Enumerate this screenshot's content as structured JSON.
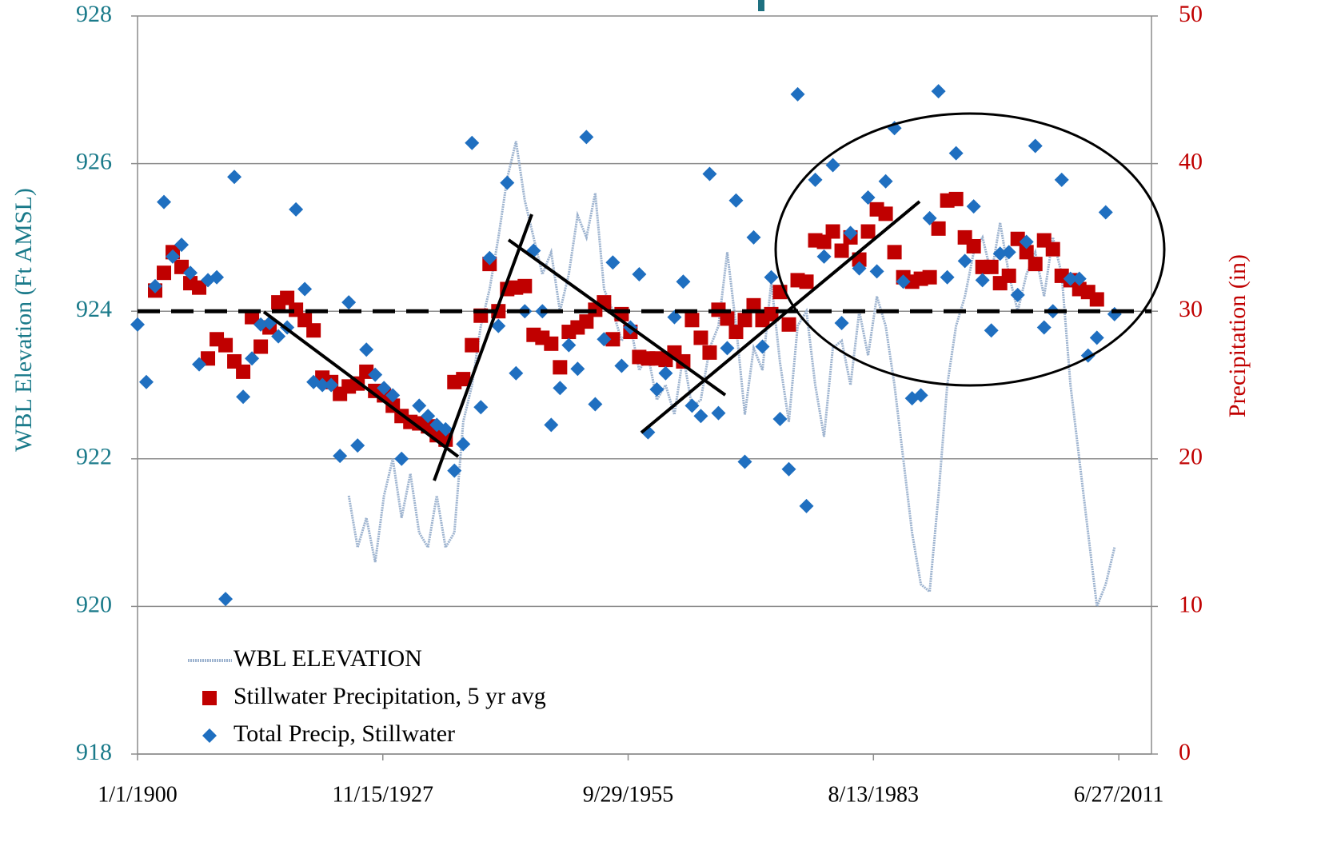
{
  "chart_data": {
    "type": "scatter",
    "ylabel": "WBL Elevation (Ft AMSL)",
    "y2label": "Precipitation (in)",
    "xlim": [
      1900,
      2015.2
    ],
    "xticks": [
      {
        "value": 1900,
        "label": "1/1/1900"
      },
      {
        "value": 1927.87,
        "label": "11/15/1927"
      },
      {
        "value": 1955.74,
        "label": "9/29/1955"
      },
      {
        "value": 1983.61,
        "label": "8/13/1983"
      },
      {
        "value": 2011.49,
        "label": "6/27/2011"
      }
    ],
    "ylim": [
      918,
      928
    ],
    "yticks": [
      918,
      920,
      922,
      924,
      926,
      928
    ],
    "y2lim": [
      0,
      50
    ],
    "y2ticks": [
      {
        "value": 0,
        "label": "0"
      },
      10,
      20,
      30,
      40,
      50
    ],
    "grid": true,
    "legend": "lower left",
    "reference_y": 924,
    "series": [
      {
        "name": "WBL ELEVATION",
        "type": "line",
        "color": "#9db3cf",
        "x": [
          1924,
          1925,
          1926,
          1927,
          1928,
          1929,
          1930,
          1931,
          1932,
          1933,
          1934,
          1935,
          1936,
          1937,
          1938,
          1939,
          1940,
          1941,
          1942,
          1943,
          1944,
          1945,
          1946,
          1947,
          1948,
          1949,
          1950,
          1951,
          1952,
          1953,
          1954,
          1955,
          1956,
          1957,
          1958,
          1959,
          1960,
          1961,
          1962,
          1963,
          1964,
          1965,
          1966,
          1967,
          1968,
          1969,
          1970,
          1971,
          1972,
          1973,
          1974,
          1975,
          1976,
          1977,
          1978,
          1979,
          1980,
          1981,
          1982,
          1983,
          1984,
          1985,
          1986,
          1987,
          1988,
          1989,
          1990,
          1991,
          1992,
          1993,
          1994,
          1995,
          1996,
          1997,
          1998,
          1999,
          2000,
          2001,
          2002,
          2003,
          2004,
          2005,
          2006,
          2007,
          2008,
          2009,
          2010,
          2011
        ],
        "values": [
          921.5,
          920.8,
          921.2,
          920.6,
          921.5,
          922.0,
          921.2,
          921.8,
          921.0,
          920.8,
          921.5,
          920.8,
          921.0,
          922.5,
          923.0,
          923.8,
          924.3,
          925.0,
          925.8,
          926.3,
          925.5,
          925.0,
          924.5,
          924.8,
          924.0,
          924.5,
          925.3,
          925.0,
          925.6,
          924.3,
          924.0,
          923.6,
          923.8,
          923.2,
          923.4,
          922.8,
          923.0,
          922.6,
          923.4,
          922.7,
          922.8,
          923.5,
          923.8,
          924.8,
          923.8,
          922.6,
          923.5,
          923.2,
          924.4,
          923.3,
          922.5,
          923.8,
          924.0,
          923.0,
          922.3,
          923.5,
          923.6,
          923.0,
          924.0,
          923.4,
          924.2,
          923.8,
          923.0,
          922.0,
          921.0,
          920.3,
          920.2,
          921.5,
          923.0,
          923.8,
          924.2,
          924.8,
          925.0,
          924.5,
          925.2,
          924.5,
          924.0,
          924.5,
          924.8,
          924.2,
          925.0,
          924.5,
          923.0,
          922.0,
          921.0,
          920.0,
          920.3,
          920.8
        ]
      },
      {
        "name": "Stillwater Precipitation, 5 yr avg",
        "type": "scatter",
        "marker": "square",
        "color": "#c00000",
        "axis": "y2",
        "x": [
          1902,
          1903,
          1904,
          1905,
          1906,
          1907,
          1908,
          1909,
          1910,
          1911,
          1912,
          1913,
          1914,
          1915,
          1916,
          1917,
          1918,
          1919,
          1920,
          1921,
          1922,
          1923,
          1924,
          1925,
          1926,
          1927,
          1928,
          1929,
          1930,
          1931,
          1932,
          1933,
          1934,
          1935,
          1936,
          1937,
          1938,
          1939,
          1940,
          1941,
          1942,
          1943,
          1944,
          1945,
          1946,
          1947,
          1948,
          1949,
          1950,
          1951,
          1952,
          1953,
          1954,
          1955,
          1956,
          1957,
          1958,
          1959,
          1960,
          1961,
          1962,
          1963,
          1964,
          1965,
          1966,
          1967,
          1968,
          1969,
          1970,
          1971,
          1972,
          1973,
          1974,
          1975,
          1976,
          1977,
          1978,
          1979,
          1980,
          1981,
          1982,
          1983,
          1984,
          1985,
          1986,
          1987,
          1988,
          1989,
          1990,
          1991,
          1992,
          1993,
          1994,
          1995,
          1996,
          1997,
          1998,
          1999,
          2000,
          2001,
          2002,
          2003,
          2004,
          2005,
          2006,
          2007,
          2008,
          2009
        ],
        "values": [
          31.4,
          32.6,
          34.0,
          33.0,
          31.9,
          31.6,
          26.8,
          28.1,
          27.7,
          26.6,
          25.9,
          29.6,
          27.6,
          28.9,
          30.6,
          30.9,
          30.1,
          29.4,
          28.7,
          25.5,
          25.2,
          24.4,
          24.9,
          25.1,
          25.9,
          24.6,
          24.3,
          23.6,
          22.9,
          22.5,
          22.4,
          22.2,
          21.6,
          21.3,
          25.2,
          25.4,
          27.7,
          29.7,
          33.2,
          30.0,
          31.5,
          31.6,
          31.7,
          28.4,
          28.2,
          27.8,
          26.2,
          28.6,
          28.9,
          29.3,
          30.1,
          30.6,
          28.1,
          29.8,
          28.6,
          26.9,
          26.8,
          26.8,
          26.7,
          27.2,
          26.6,
          29.4,
          28.2,
          27.2,
          30.1,
          29.5,
          28.6,
          29.4,
          30.4,
          29.4,
          29.8,
          31.3,
          29.1,
          32.1,
          32.0,
          34.8,
          34.7,
          35.4,
          34.1,
          35.0,
          33.5,
          35.4,
          36.9,
          36.6,
          34.0,
          32.3,
          32.0,
          32.2,
          32.3,
          35.6,
          37.5,
          37.6,
          35.0,
          34.4,
          33.0,
          33.0,
          31.9,
          32.4,
          34.9,
          34.0,
          33.2,
          34.8,
          34.2,
          32.4,
          32.1,
          31.5,
          31.3,
          30.8
        ]
      },
      {
        "name": "Total Precip, Stillwater",
        "type": "scatter",
        "marker": "diamond",
        "color": "#1f6fc0",
        "axis": "y2",
        "x": [
          1900,
          1901,
          1902,
          1903,
          1904,
          1905,
          1906,
          1907,
          1908,
          1909,
          1910,
          1911,
          1912,
          1913,
          1914,
          1915,
          1916,
          1917,
          1918,
          1919,
          1920,
          1921,
          1922,
          1923,
          1924,
          1925,
          1926,
          1927,
          1928,
          1929,
          1930,
          1932,
          1933,
          1934,
          1935,
          1936,
          1937,
          1938,
          1939,
          1940,
          1941,
          1942,
          1943,
          1944,
          1945,
          1946,
          1947,
          1948,
          1949,
          1950,
          1951,
          1952,
          1953,
          1954,
          1955,
          1956,
          1957,
          1958,
          1959,
          1960,
          1961,
          1962,
          1963,
          1964,
          1965,
          1966,
          1967,
          1968,
          1969,
          1970,
          1971,
          1972,
          1973,
          1974,
          1975,
          1976,
          1977,
          1978,
          1979,
          1980,
          1981,
          1982,
          1983,
          1984,
          1985,
          1986,
          1987,
          1988,
          1989,
          1990,
          1991,
          1992,
          1993,
          1994,
          1995,
          1996,
          1997,
          1998,
          1999,
          2000,
          2001,
          2002,
          2003,
          2004,
          2005,
          2006,
          2007,
          2008,
          2009,
          2010,
          2011
        ],
        "values": [
          29.1,
          25.2,
          31.7,
          37.4,
          33.7,
          34.5,
          32.6,
          26.4,
          32.1,
          32.3,
          10.5,
          39.1,
          24.2,
          26.8,
          29.1,
          29.2,
          28.3,
          28.9,
          36.9,
          31.5,
          25.2,
          25.0,
          25.0,
          20.2,
          30.6,
          20.9,
          27.4,
          25.7,
          24.8,
          24.3,
          20.0,
          23.6,
          22.9,
          22.3,
          22.0,
          19.2,
          21.0,
          41.4,
          23.5,
          33.6,
          29.0,
          38.7,
          25.8,
          30.0,
          34.1,
          30.0,
          22.3,
          24.8,
          27.7,
          26.1,
          41.8,
          23.7,
          28.1,
          33.3,
          26.3,
          28.9,
          32.5,
          21.8,
          24.7,
          25.8,
          29.6,
          32.0,
          23.6,
          22.9,
          39.3,
          23.1,
          27.5,
          37.5,
          19.8,
          35.0,
          27.6,
          32.3,
          22.7,
          19.3,
          44.7,
          16.8,
          38.9,
          33.7,
          39.9,
          29.2,
          35.3,
          32.9,
          37.7,
          32.7,
          38.8,
          42.4,
          32.0,
          24.1,
          24.3,
          36.3,
          44.9,
          32.3,
          40.7,
          33.4,
          37.1,
          32.1,
          28.7,
          33.9,
          34.0,
          31.1,
          34.7,
          41.2,
          28.9,
          30.0,
          38.9,
          32.2,
          32.2,
          27.0,
          28.2,
          36.7,
          29.8
        ]
      }
    ]
  }
}
